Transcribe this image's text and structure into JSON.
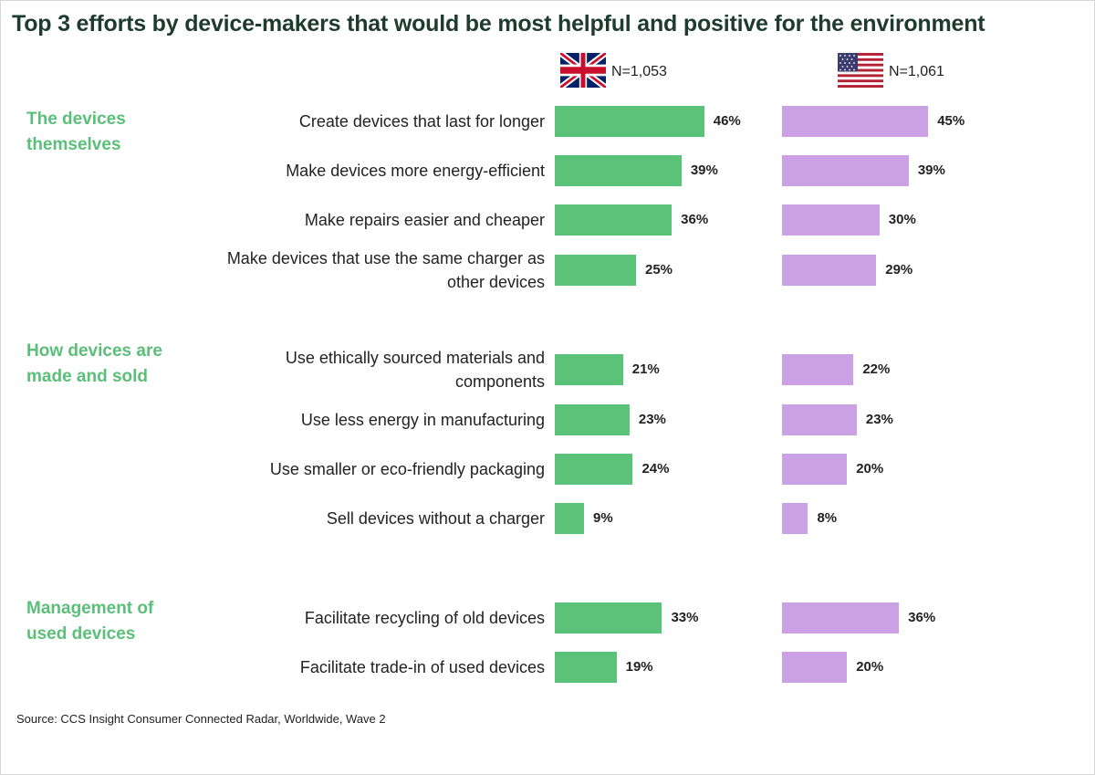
{
  "title": "Top 3 efforts by device-makers that would be most helpful and positive for the environment",
  "source": "Source: CCS Insight Consumer Connected Radar, Worldwide, Wave 2",
  "colors": {
    "uk": "#5bc279",
    "us": "#c9a1e4",
    "group": "#5bbf79",
    "title": "#1e3b2f"
  },
  "panels": [
    {
      "flag": "uk-flag-icon",
      "n_label": "N=1,053"
    },
    {
      "flag": "us-flag-icon",
      "n_label": "N=1,061"
    }
  ],
  "groups": [
    {
      "label": "The devices themselves"
    },
    {
      "label": "How devices are made and sold"
    },
    {
      "label": "Management of used devices"
    }
  ],
  "chart_data": {
    "type": "bar",
    "orientation": "horizontal",
    "title": "Top 3 efforts by device-makers that would be most helpful and positive for the environment",
    "value_unit": "%",
    "categories": [
      "Create devices that last for longer",
      "Make devices more energy-efficient",
      "Make repairs easier and cheaper",
      "Make devices that use the same charger as other devices",
      "Use ethically sourced materials and components",
      "Use less energy in manufacturing",
      "Use smaller or eco-friendly packaging",
      "Sell devices without a charger",
      "Facilitate recycling of old devices",
      "Facilitate trade-in of used devices"
    ],
    "category_groups": [
      0,
      0,
      0,
      0,
      1,
      1,
      1,
      1,
      2,
      2
    ],
    "series": [
      {
        "values": [
          46,
          39,
          36,
          25,
          21,
          23,
          24,
          9,
          33,
          19
        ],
        "labels": [
          "46%",
          "39%",
          "36%",
          "25%",
          "21%",
          "23%",
          "24%",
          "9%",
          "33%",
          "19%"
        ]
      },
      {
        "values": [
          45,
          39,
          30,
          29,
          22,
          23,
          20,
          8,
          36,
          20
        ],
        "labels": [
          "45%",
          "39%",
          "30%",
          "29%",
          "22%",
          "23%",
          "20%",
          "8%",
          "36%",
          "20%"
        ]
      }
    ]
  }
}
